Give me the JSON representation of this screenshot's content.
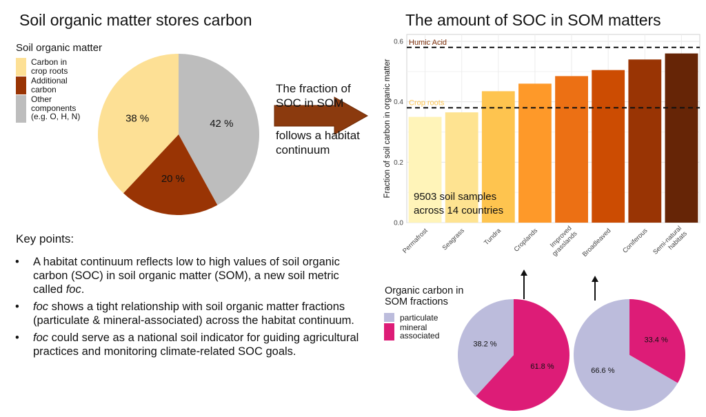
{
  "left": {
    "title": "Soil organic matter stores carbon",
    "legend_title": "Soil organic matter",
    "legend": [
      {
        "line1": "Carbon in",
        "line2": "crop roots",
        "line3": "",
        "line4": "",
        "color": "#fde095"
      },
      {
        "line1": "Additional",
        "line2": "carbon",
        "line3": "",
        "line4": "",
        "color": "#993404"
      },
      {
        "line1": "Other",
        "line2": "components",
        "line3": "(e.g. O, H, N)",
        "line4": "",
        "color": "#bdbdbd"
      }
    ]
  },
  "middle": {
    "text1_line1": "The fraction of",
    "text1_line2": "SOC in SOM",
    "text2_line1": "follows a habitat",
    "text2_line2": "continuum"
  },
  "right": {
    "title": "The amount of SOC in SOM matters",
    "annotation_line1": "9503 soil samples",
    "annotation_line2": "across 14 countries"
  },
  "key_points": {
    "title": "Key points:",
    "bullet": "•",
    "items": [
      {
        "a": "A habitat continuum reflects low to high values of soil organic carbon (SOC) in soil organic matter (SOM), a new soil metric called ",
        "b": "foc",
        "c": "."
      },
      {
        "a": "",
        "b": "foc",
        "c": " shows a tight relationship with soil organic matter fractions (particulate & mineral-associated) across the habitat continuum."
      },
      {
        "a": "",
        "b": "foc",
        "c": " could serve as a national soil indicator for guiding agricultural practices and monitoring climate-related SOC goals."
      }
    ]
  },
  "oc_legend": {
    "title_line1": "Organic carbon in",
    "title_line2": "SOM fractions",
    "items": [
      {
        "line1": "particulate",
        "line2": "",
        "color": "#bcbcdc"
      },
      {
        "line1": "mineral",
        "line2": "associated",
        "color": "#dd1c77"
      }
    ]
  },
  "chart_data": [
    {
      "type": "pie",
      "name": "soil-organic-matter-pie",
      "labels": [
        "Other components",
        "Additional carbon",
        "Carbon in crop roots"
      ],
      "values": [
        42,
        20,
        38
      ],
      "value_labels": [
        "42 %",
        "20 %",
        "38 %"
      ],
      "colors": [
        "#bdbdbd",
        "#993404",
        "#fde095"
      ],
      "start": "top, clockwise"
    },
    {
      "type": "bar",
      "name": "soc-fraction-bar",
      "title": "",
      "xlabel": "",
      "ylabel": "Fraction of soil carbon in organic matter",
      "categories": [
        "Permafrost",
        "Seagrass",
        "Tundra",
        "Croplands",
        "Improved grasslands",
        "Broadleaved",
        "Coniferous",
        "Semi-natural habitats"
      ],
      "category_lines": [
        [
          "Permafrost"
        ],
        [
          "Seagrass"
        ],
        [
          "Tundra"
        ],
        [
          "Croplands"
        ],
        [
          "Improved",
          "grasslands"
        ],
        [
          "Broadleaved"
        ],
        [
          "Coniferous"
        ],
        [
          "Semi-natural",
          "habitats"
        ]
      ],
      "values": [
        0.35,
        0.365,
        0.435,
        0.46,
        0.485,
        0.505,
        0.54,
        0.56
      ],
      "colors": [
        "#fff4b9",
        "#fee391",
        "#fec44f",
        "#fe9929",
        "#ec7014",
        "#cc4c02",
        "#993404",
        "#662506"
      ],
      "ylim": [
        0,
        0.6
      ],
      "yticks": [
        0.0,
        0.2,
        0.4,
        0.6
      ],
      "ytick_labels": [
        "0.0",
        "0.2",
        "0.4",
        "0.6"
      ],
      "grid": true,
      "reference_lines": [
        {
          "label": "Humic Acid",
          "value": 0.58,
          "color": "#7a2a05"
        },
        {
          "label": "Crop roots",
          "value": 0.38,
          "color": "#fec44f"
        }
      ]
    },
    {
      "type": "pie",
      "name": "croplands-fraction-pie",
      "labels": [
        "mineral associated",
        "particulate"
      ],
      "values": [
        61.8,
        38.2
      ],
      "value_labels": [
        "61.8 %",
        "38.2 %"
      ],
      "colors": [
        "#dd1c77",
        "#bcbcdc"
      ],
      "start": "top, clockwise"
    },
    {
      "type": "pie",
      "name": "broadleaved-fraction-pie",
      "labels": [
        "mineral associated",
        "particulate"
      ],
      "values": [
        33.4,
        66.6
      ],
      "value_labels": [
        "33.4 %",
        "66.6 %"
      ],
      "colors": [
        "#dd1c77",
        "#bcbcdc"
      ],
      "start": "top, clockwise"
    }
  ]
}
